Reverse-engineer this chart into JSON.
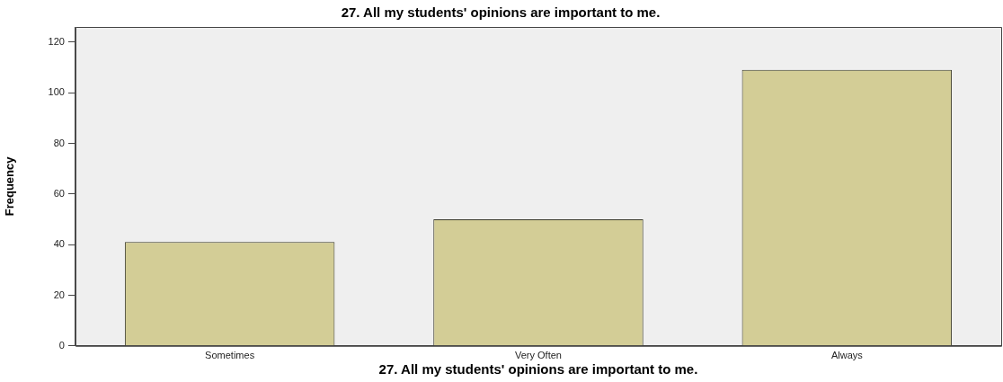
{
  "chart_data": {
    "type": "bar",
    "title": "27. All my students' opinions are important to me.",
    "xlabel": "27. All my students' opinions are important to me.",
    "ylabel": "Frequency",
    "categories": [
      "Sometimes",
      "Very Often",
      "Always"
    ],
    "values": [
      41,
      50,
      109
    ],
    "color": "#d3cd96",
    "ylim": [
      0,
      126
    ],
    "yticks": [
      0,
      20,
      40,
      60,
      80,
      100,
      120
    ],
    "grid": false,
    "legend": false
  }
}
